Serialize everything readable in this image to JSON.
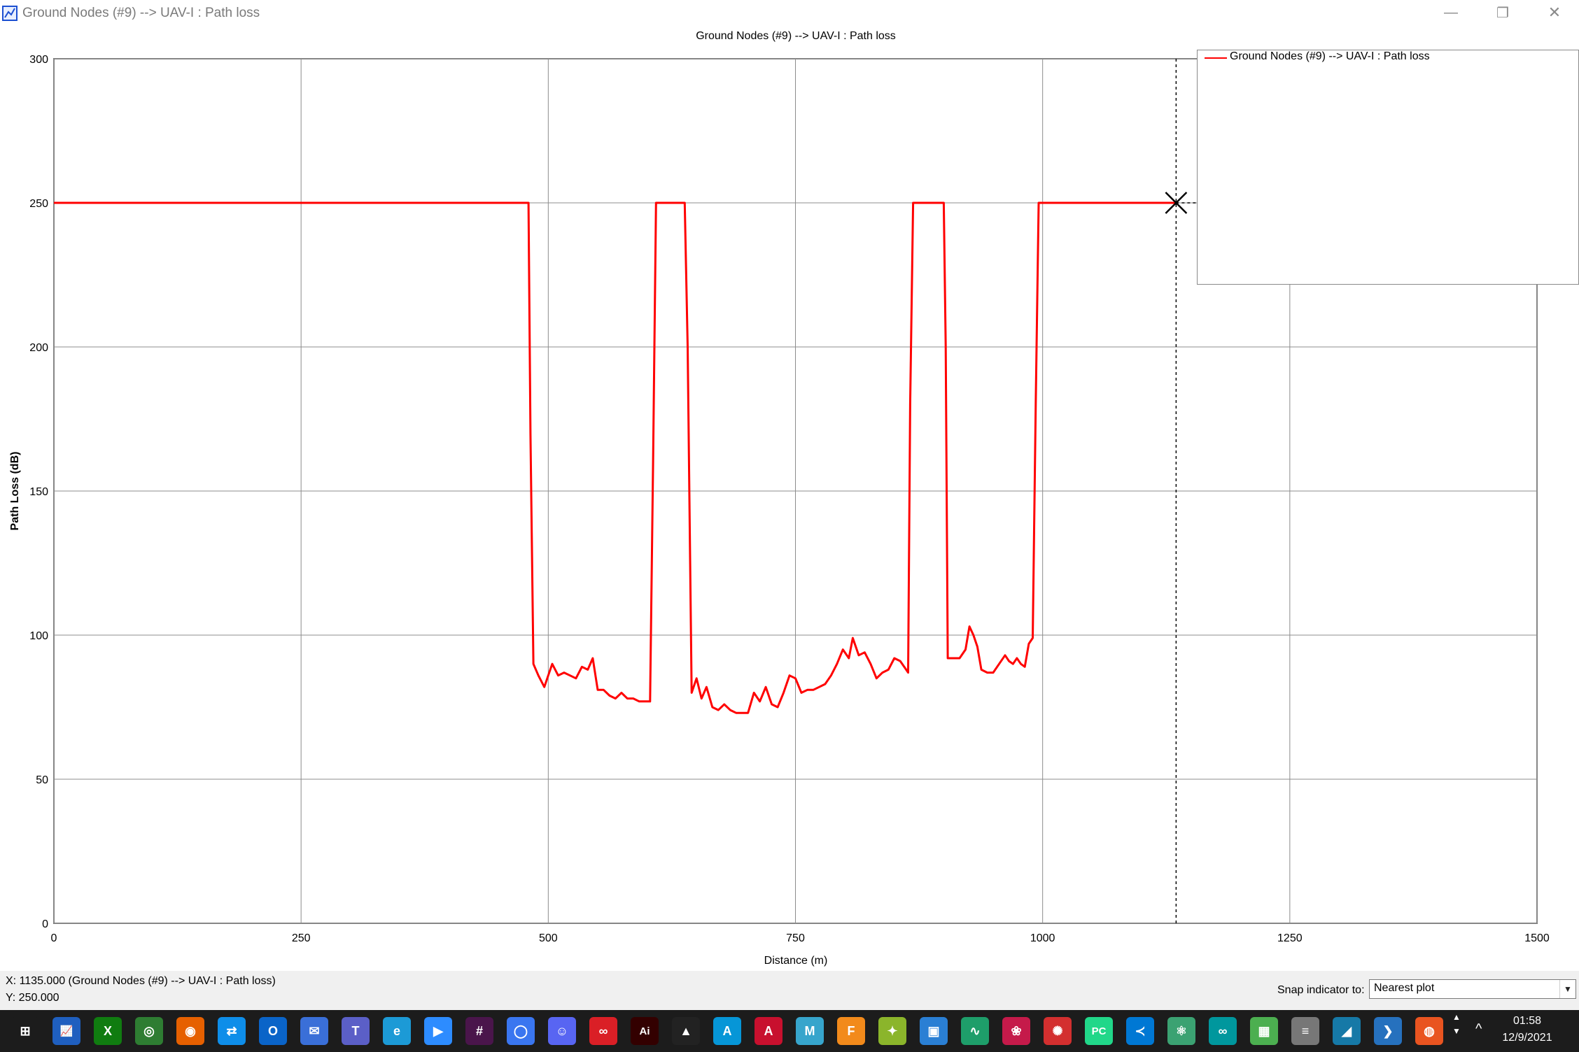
{
  "window": {
    "title": "Ground Nodes (#9) --> UAV-I : Path loss",
    "minimize_glyph": "—",
    "restore_glyph": "❐",
    "close_glyph": "✕"
  },
  "chart_data": {
    "type": "line",
    "title": "Ground Nodes (#9) --> UAV-I : Path loss",
    "xlabel": "Distance (m)",
    "ylabel": "Path Loss (dB)",
    "xlim": [
      0,
      1500
    ],
    "ylim": [
      0,
      300
    ],
    "x_ticks": [
      0,
      250,
      500,
      750,
      1000,
      1250,
      1500
    ],
    "y_ticks": [
      0,
      50,
      100,
      150,
      200,
      250,
      300
    ],
    "grid": true,
    "legend_position": "top-right",
    "cursor": {
      "x": 1135,
      "y": 250
    },
    "series": [
      {
        "name": "Ground Nodes (#9) --> UAV-I : Path loss",
        "color": "#ff0000",
        "points": [
          [
            0,
            250
          ],
          [
            480,
            250
          ],
          [
            482,
            170
          ],
          [
            485,
            90
          ],
          [
            490,
            86
          ],
          [
            496,
            82
          ],
          [
            500,
            86
          ],
          [
            504,
            90
          ],
          [
            510,
            86
          ],
          [
            516,
            87
          ],
          [
            522,
            86
          ],
          [
            528,
            85
          ],
          [
            534,
            89
          ],
          [
            540,
            88
          ],
          [
            545,
            92
          ],
          [
            550,
            81
          ],
          [
            556,
            81
          ],
          [
            562,
            79
          ],
          [
            568,
            78
          ],
          [
            574,
            80
          ],
          [
            580,
            78
          ],
          [
            586,
            78
          ],
          [
            592,
            77
          ],
          [
            598,
            77
          ],
          [
            603,
            77
          ],
          [
            606,
            160
          ],
          [
            609,
            250
          ],
          [
            638,
            250
          ],
          [
            641,
            200
          ],
          [
            645,
            80
          ],
          [
            650,
            85
          ],
          [
            655,
            78
          ],
          [
            660,
            82
          ],
          [
            666,
            75
          ],
          [
            672,
            74
          ],
          [
            678,
            76
          ],
          [
            684,
            74
          ],
          [
            690,
            73
          ],
          [
            696,
            73
          ],
          [
            702,
            73
          ],
          [
            708,
            80
          ],
          [
            714,
            77
          ],
          [
            720,
            82
          ],
          [
            726,
            76
          ],
          [
            732,
            75
          ],
          [
            738,
            80
          ],
          [
            744,
            86
          ],
          [
            750,
            85
          ],
          [
            756,
            80
          ],
          [
            762,
            81
          ],
          [
            768,
            81
          ],
          [
            774,
            82
          ],
          [
            780,
            83
          ],
          [
            786,
            86
          ],
          [
            792,
            90
          ],
          [
            798,
            95
          ],
          [
            804,
            92
          ],
          [
            808,
            99
          ],
          [
            814,
            93
          ],
          [
            820,
            94
          ],
          [
            826,
            90
          ],
          [
            832,
            85
          ],
          [
            838,
            87
          ],
          [
            844,
            88
          ],
          [
            850,
            92
          ],
          [
            856,
            91
          ],
          [
            862,
            88
          ],
          [
            864,
            87
          ],
          [
            866,
            180
          ],
          [
            869,
            250
          ],
          [
            900,
            250
          ],
          [
            902,
            200
          ],
          [
            904,
            92
          ],
          [
            910,
            92
          ],
          [
            916,
            92
          ],
          [
            922,
            95
          ],
          [
            926,
            103
          ],
          [
            930,
            100
          ],
          [
            934,
            96
          ],
          [
            938,
            88
          ],
          [
            944,
            87
          ],
          [
            950,
            87
          ],
          [
            956,
            90
          ],
          [
            962,
            93
          ],
          [
            966,
            91
          ],
          [
            970,
            90
          ],
          [
            974,
            92
          ],
          [
            978,
            90
          ],
          [
            982,
            89
          ],
          [
            986,
            97
          ],
          [
            990,
            99
          ],
          [
            993,
            180
          ],
          [
            996,
            250
          ],
          [
            1135,
            250
          ]
        ]
      }
    ]
  },
  "status": {
    "x_line": "X: 1135.000 (Ground Nodes (#9) --> UAV-I : Path loss)",
    "y_line": "Y: 250.000",
    "snap_label": "Snap indicator to:",
    "snap_value": "Nearest plot",
    "snap_arrow": "▼"
  },
  "taskbar": {
    "time": "01:58",
    "date": "12/9/2021",
    "tray_arrow": "^",
    "icons": [
      {
        "name": "start-icon",
        "glyph": "⊞",
        "color": "#1c1c1c"
      },
      {
        "name": "stocks-app-icon",
        "glyph": "📈",
        "color": "#1f5fbf"
      },
      {
        "name": "xbox-icon",
        "glyph": "X",
        "color": "#107c10"
      },
      {
        "name": "globe-icon",
        "glyph": "◎",
        "color": "#2e7d32"
      },
      {
        "name": "firefox-icon",
        "glyph": "◉",
        "color": "#e66000"
      },
      {
        "name": "teamviewer-icon",
        "glyph": "⇄",
        "color": "#0e8ee9"
      },
      {
        "name": "outlook-icon",
        "glyph": "O",
        "color": "#0a64c8"
      },
      {
        "name": "mail-icon",
        "glyph": "✉",
        "color": "#3a6fd8"
      },
      {
        "name": "teams-icon",
        "glyph": "T",
        "color": "#5b5fc7"
      },
      {
        "name": "edge-icon",
        "glyph": "e",
        "color": "#1c9ad6"
      },
      {
        "name": "zoom-icon",
        "glyph": "▶",
        "color": "#2d8cff"
      },
      {
        "name": "slack-icon",
        "glyph": "#",
        "color": "#4a154b"
      },
      {
        "name": "signal-icon",
        "glyph": "◯",
        "color": "#3a76f0"
      },
      {
        "name": "discord-icon",
        "glyph": "☺",
        "color": "#5865f2"
      },
      {
        "name": "creative-cloud-icon",
        "glyph": "∞",
        "color": "#da1f26"
      },
      {
        "name": "illustrator-icon",
        "glyph": "Ai",
        "color": "#330000"
      },
      {
        "name": "inkscape-icon",
        "glyph": "▲",
        "color": "#222222"
      },
      {
        "name": "autodesk-icon",
        "glyph": "A",
        "color": "#0696d7"
      },
      {
        "name": "autocad-icon",
        "glyph": "A",
        "color": "#c8102e"
      },
      {
        "name": "maya-icon",
        "glyph": "M",
        "color": "#37a5cc"
      },
      {
        "name": "fusion-icon",
        "glyph": "F",
        "color": "#f28a1b"
      },
      {
        "name": "tinkercad-icon",
        "glyph": "✦",
        "color": "#8bb52b"
      },
      {
        "name": "chip-icon",
        "glyph": "▣",
        "color": "#2a7fd4"
      },
      {
        "name": "signal-wave-icon",
        "glyph": "∿",
        "color": "#1e9e6a"
      },
      {
        "name": "raspberry-icon",
        "glyph": "❀",
        "color": "#c51a4a"
      },
      {
        "name": "ros-icon",
        "glyph": "✺",
        "color": "#d32f2f"
      },
      {
        "name": "pycharm-icon",
        "glyph": "PC",
        "color": "#21d789"
      },
      {
        "name": "vscode-icon",
        "glyph": "≺",
        "color": "#0078d4"
      },
      {
        "name": "atom-icon",
        "glyph": "⚛",
        "color": "#3ba272"
      },
      {
        "name": "arduino-icon",
        "glyph": "∞",
        "color": "#00979d"
      },
      {
        "name": "image-editor-icon",
        "glyph": "▦",
        "color": "#4caf50"
      },
      {
        "name": "database-icon",
        "glyph": "≡",
        "color": "#777777"
      },
      {
        "name": "wireshark-icon",
        "glyph": "◢",
        "color": "#1679a7"
      },
      {
        "name": "powershell-icon",
        "glyph": "❯",
        "color": "#2671be"
      },
      {
        "name": "ubuntu-icon",
        "glyph": "◍",
        "color": "#e95420"
      }
    ]
  }
}
